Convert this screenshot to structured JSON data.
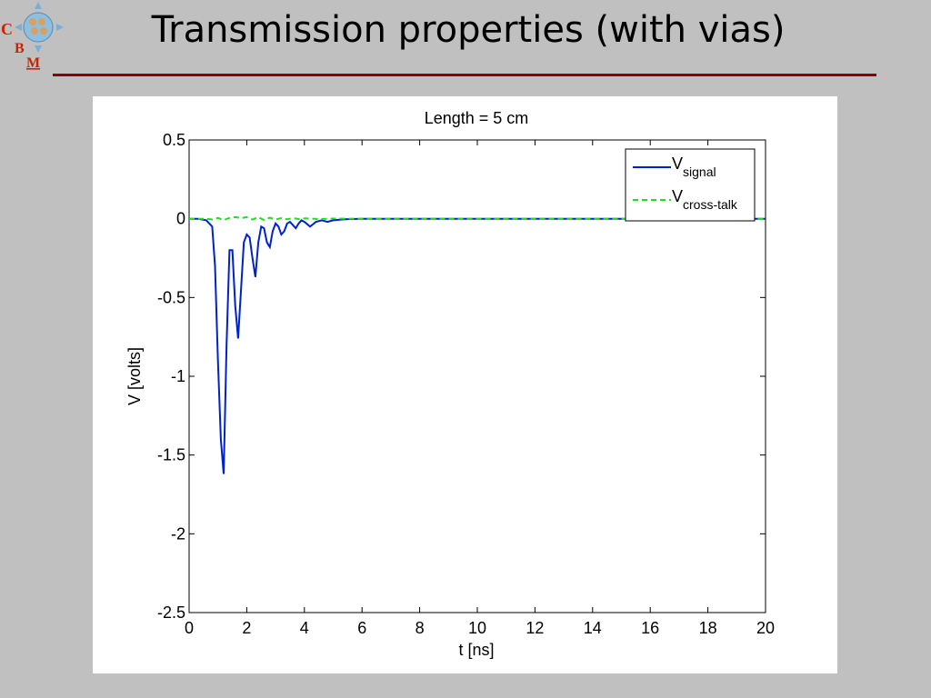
{
  "slide": {
    "title": "Transmission properties (with vias)",
    "logo_letters": [
      "C",
      "B",
      "M"
    ],
    "title_rule_color": "#8b0000"
  },
  "chart_data": {
    "type": "line",
    "title": "Length = 5 cm",
    "xlabel": "t [ns]",
    "ylabel": "V [volts]",
    "xlim": [
      0,
      20
    ],
    "ylim": [
      -2.5,
      0.5
    ],
    "xticks": [
      0,
      2,
      4,
      6,
      8,
      10,
      12,
      14,
      16,
      18,
      20
    ],
    "yticks": [
      0.5,
      0,
      -0.5,
      -1,
      -1.5,
      -2,
      -2.5
    ],
    "xtick_labels": [
      "0",
      "2",
      "4",
      "6",
      "8",
      "10",
      "12",
      "14",
      "16",
      "18",
      "20"
    ],
    "ytick_labels": [
      "0.5",
      "0",
      "-0.5",
      "-1",
      "-1.5",
      "-2",
      "-2.5"
    ],
    "grid": false,
    "legend_position": "top-right",
    "series": [
      {
        "name": "V",
        "subscript": "signal",
        "color": "#0022cc",
        "dash": "solid",
        "x": [
          0,
          0.3,
          0.6,
          0.8,
          0.9,
          1.0,
          1.1,
          1.2,
          1.3,
          1.4,
          1.5,
          1.6,
          1.7,
          1.8,
          1.9,
          2.0,
          2.1,
          2.2,
          2.3,
          2.4,
          2.5,
          2.6,
          2.7,
          2.8,
          2.9,
          3.0,
          3.1,
          3.2,
          3.3,
          3.4,
          3.5,
          3.6,
          3.7,
          3.8,
          3.9,
          4.0,
          4.2,
          4.4,
          4.6,
          4.8,
          5.0,
          5.3,
          5.6,
          6.0,
          6.5,
          7.0,
          8,
          10,
          12,
          14,
          16,
          18,
          20
        ],
        "y": [
          0,
          0,
          -0.01,
          -0.05,
          -0.3,
          -0.9,
          -1.4,
          -1.62,
          -0.8,
          -0.2,
          -0.2,
          -0.55,
          -0.76,
          -0.45,
          -0.15,
          -0.1,
          -0.12,
          -0.25,
          -0.37,
          -0.15,
          -0.05,
          -0.06,
          -0.15,
          -0.18,
          -0.08,
          -0.03,
          -0.05,
          -0.1,
          -0.08,
          -0.03,
          -0.02,
          -0.04,
          -0.06,
          -0.03,
          -0.01,
          -0.02,
          -0.05,
          -0.02,
          -0.01,
          -0.02,
          -0.01,
          -0.005,
          -0.002,
          0,
          0,
          0,
          0,
          0,
          0,
          0,
          0,
          0,
          0
        ]
      },
      {
        "name": "V",
        "subscript": "cross-talk",
        "color": "#22dd22",
        "dash": "dashed",
        "x": [
          0,
          0.3,
          0.6,
          0.8,
          1.0,
          1.2,
          1.4,
          1.6,
          1.8,
          2.0,
          2.2,
          2.4,
          2.6,
          2.8,
          3.0,
          3.2,
          3.4,
          3.6,
          3.8,
          4.0,
          4.5,
          5.0,
          6,
          8,
          10,
          12,
          14,
          16,
          18,
          20
        ],
        "y": [
          0,
          0,
          0,
          -0.005,
          0.005,
          -0.008,
          0.005,
          0.01,
          0.003,
          0.01,
          -0.005,
          0.01,
          -0.008,
          0.006,
          -0.005,
          0.004,
          -0.003,
          0.004,
          -0.002,
          0.002,
          -0.002,
          0.001,
          0,
          0,
          0,
          0,
          0,
          0,
          0,
          0
        ]
      }
    ]
  }
}
